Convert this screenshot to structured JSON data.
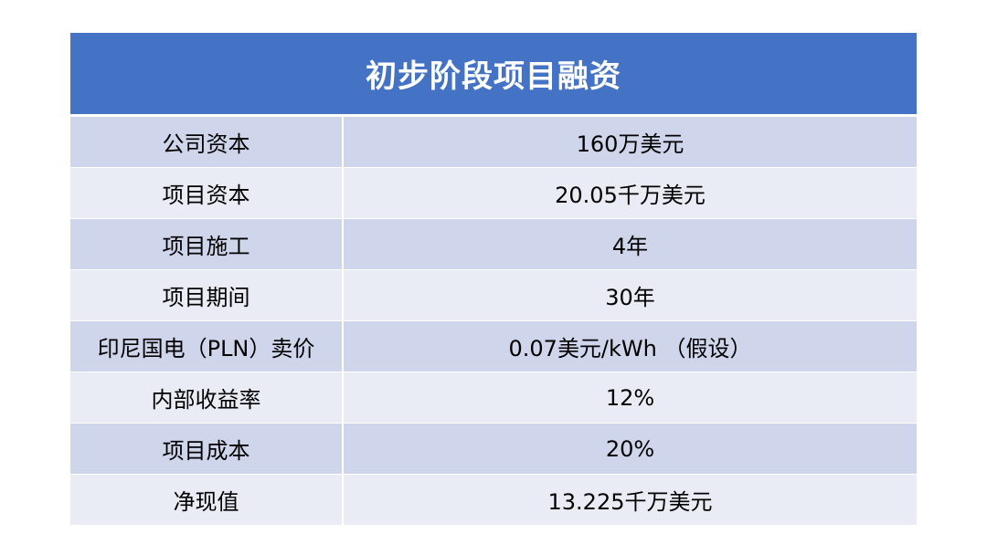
{
  "table": {
    "title": "初步阶段项目融资",
    "rows": [
      {
        "label": "公司资本",
        "value": "160万美元"
      },
      {
        "label": "项目资本",
        "value": "20.05千万美元"
      },
      {
        "label": "项目施工",
        "value": "4年"
      },
      {
        "label": "项目期间",
        "value": "30年"
      },
      {
        "label": "印尼国电（PLN）卖价",
        "value": "0.07美元/kWh （假设）"
      },
      {
        "label": "内部收益率",
        "value": "12%"
      },
      {
        "label": "项目成本",
        "value": "20%"
      },
      {
        "label": "净现值",
        "value": "13.225千万美元"
      }
    ]
  },
  "colors": {
    "header": "#4472c4",
    "row_odd": "#cfd5ea",
    "row_even": "#e9ebf5"
  }
}
